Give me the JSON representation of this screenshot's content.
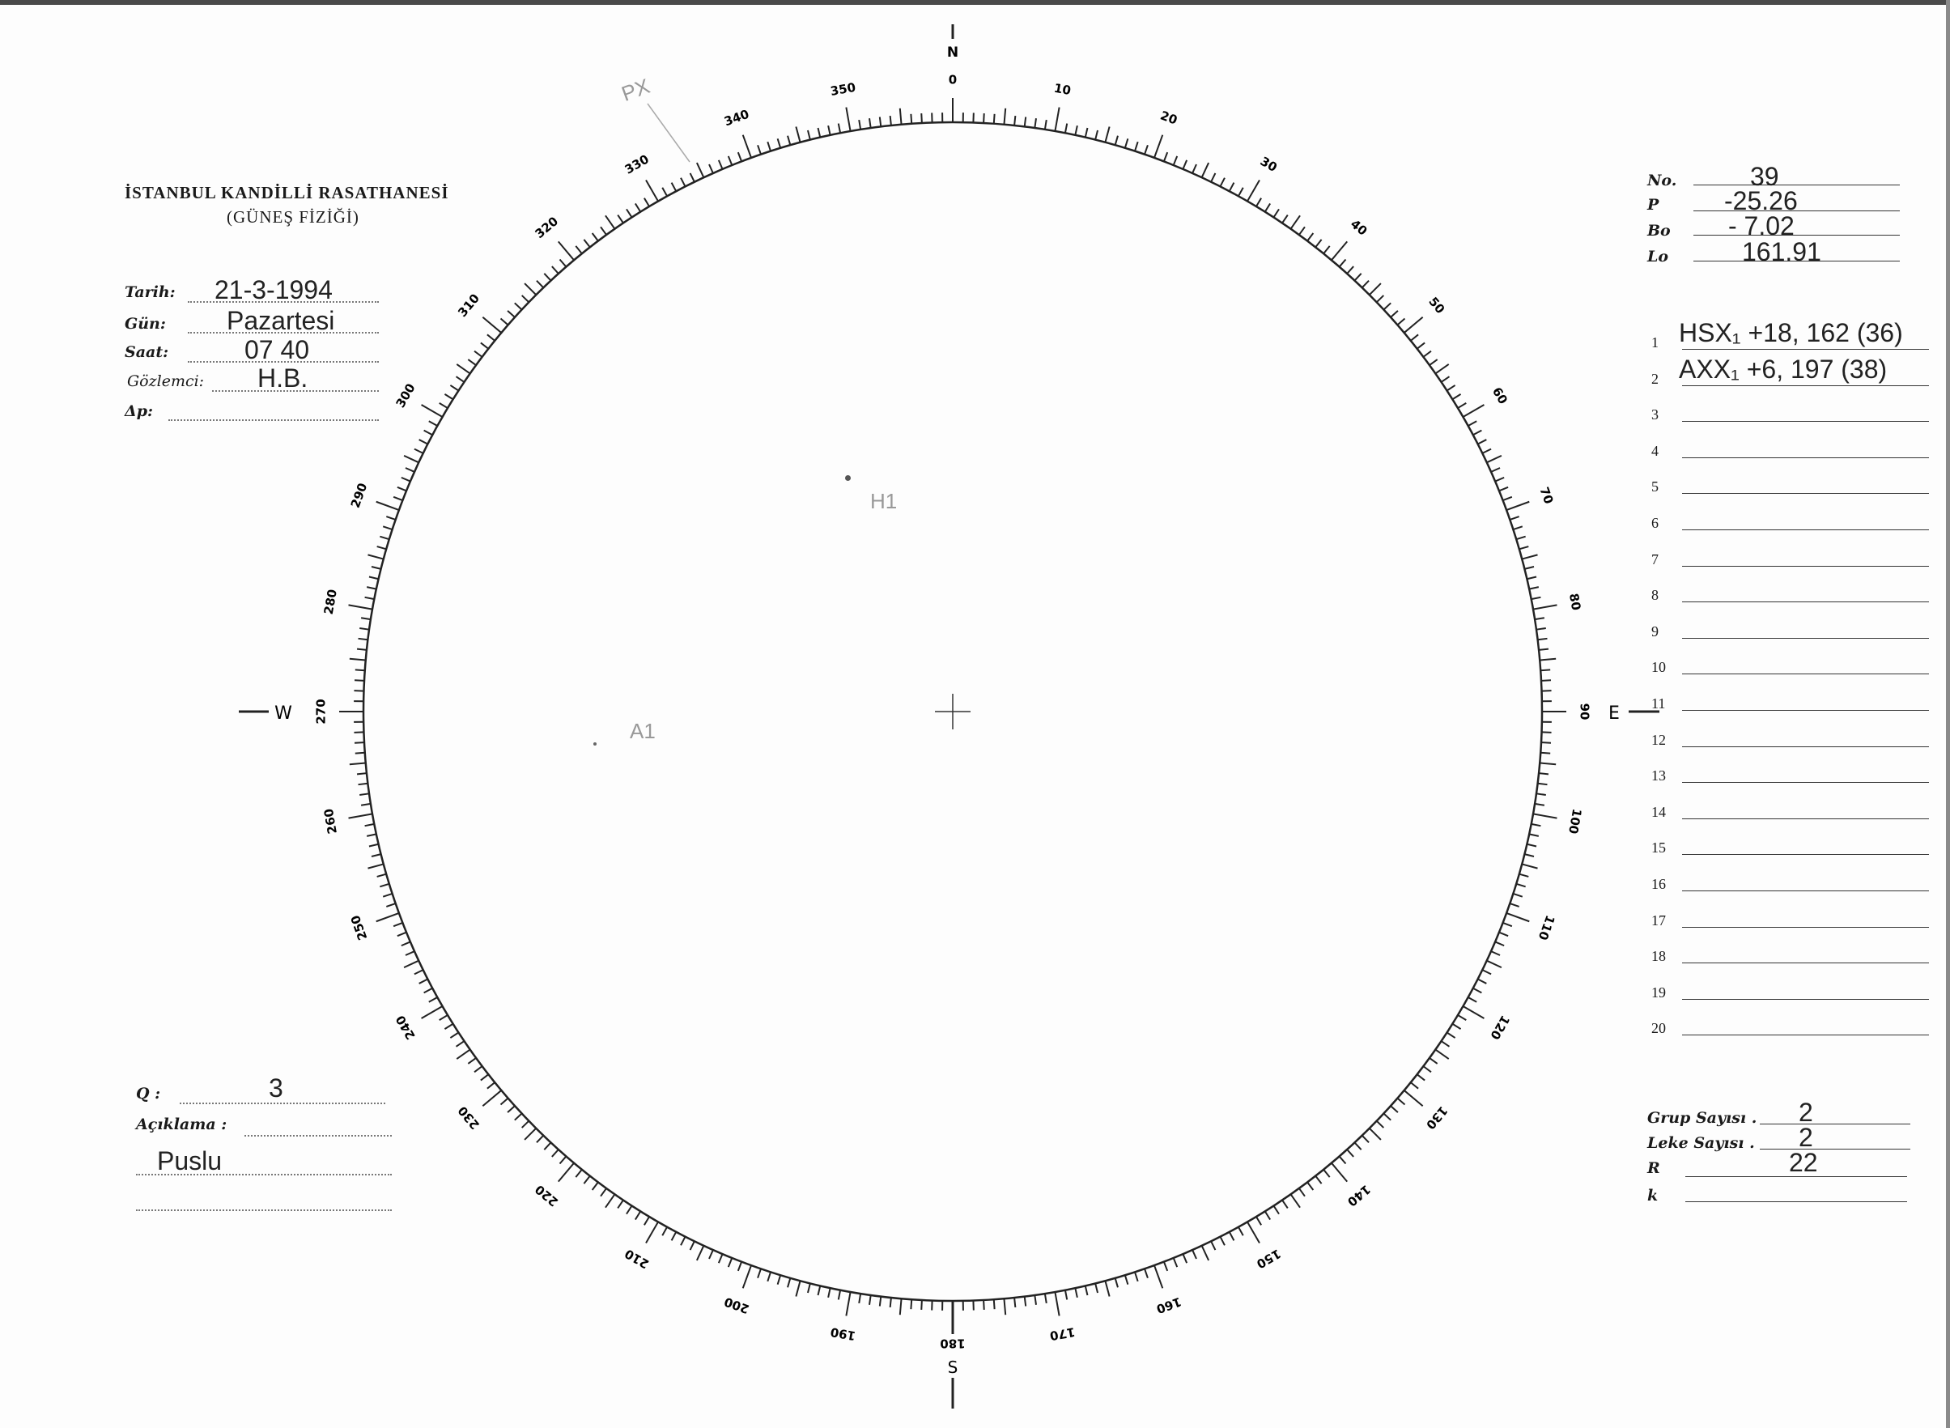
{
  "header": {
    "institution": "İSTANBUL KANDİLLİ RASATHANESİ",
    "department": "(GÜNEŞ FİZİĞİ)"
  },
  "observation": {
    "date": {
      "label": "Tarih:",
      "value": "21-3-1994"
    },
    "day": {
      "label": "Gün:",
      "value": "Pazartesi"
    },
    "time": {
      "label": "Saat:",
      "value": "07 40"
    },
    "observer": {
      "label": "Gözlemci:",
      "value": "H.B."
    },
    "delta_p": {
      "label": "Δp:",
      "value": ""
    }
  },
  "quality": {
    "label": "Q :",
    "value": "3"
  },
  "remarks": {
    "label": "Açıklama :",
    "value": "Puslu"
  },
  "ephemeris": {
    "no": {
      "label": "No.",
      "value": "39"
    },
    "p": {
      "label": "P",
      "value": "-25.26"
    },
    "bo": {
      "label": "Bo",
      "value": "- 7.02"
    },
    "lo": {
      "label": "Lo",
      "value": "161.91"
    }
  },
  "groups": [
    {
      "n": "1",
      "text": "HSX₁ +18, 162 (36)"
    },
    {
      "n": "2",
      "text": "AXX₁ +6, 197 (38)"
    },
    {
      "n": "3",
      "text": ""
    },
    {
      "n": "4",
      "text": ""
    },
    {
      "n": "5",
      "text": ""
    },
    {
      "n": "6",
      "text": ""
    },
    {
      "n": "7",
      "text": ""
    },
    {
      "n": "8",
      "text": ""
    },
    {
      "n": "9",
      "text": ""
    },
    {
      "n": "10",
      "text": ""
    },
    {
      "n": "11",
      "text": ""
    },
    {
      "n": "12",
      "text": ""
    },
    {
      "n": "13",
      "text": ""
    },
    {
      "n": "14",
      "text": ""
    },
    {
      "n": "15",
      "text": ""
    },
    {
      "n": "16",
      "text": ""
    },
    {
      "n": "17",
      "text": ""
    },
    {
      "n": "18",
      "text": ""
    },
    {
      "n": "19",
      "text": ""
    },
    {
      "n": "20",
      "text": ""
    }
  ],
  "summary": {
    "group_count": {
      "label": "Grup Sayısı .",
      "value": "2"
    },
    "spot_count": {
      "label": "Leke Sayısı .",
      "value": "2"
    },
    "r": {
      "label": "R",
      "value": "22"
    },
    "k": {
      "label": "k",
      "value": ""
    }
  },
  "disk": {
    "cardinals": {
      "n": "N",
      "e": "E",
      "s": "S",
      "w": "W"
    },
    "scale_labels": [
      "0",
      "10",
      "20",
      "30",
      "40",
      "50",
      "60",
      "70",
      "80",
      "90",
      "100",
      "110",
      "120",
      "130",
      "140",
      "150",
      "160",
      "170",
      "180",
      "190",
      "200",
      "210",
      "220",
      "230",
      "240",
      "250",
      "260",
      "270",
      "280",
      "290",
      "300",
      "310",
      "320",
      "330",
      "340",
      "350"
    ],
    "annotations": {
      "pole": "PX",
      "group1": "H1",
      "group2": "A1"
    }
  }
}
